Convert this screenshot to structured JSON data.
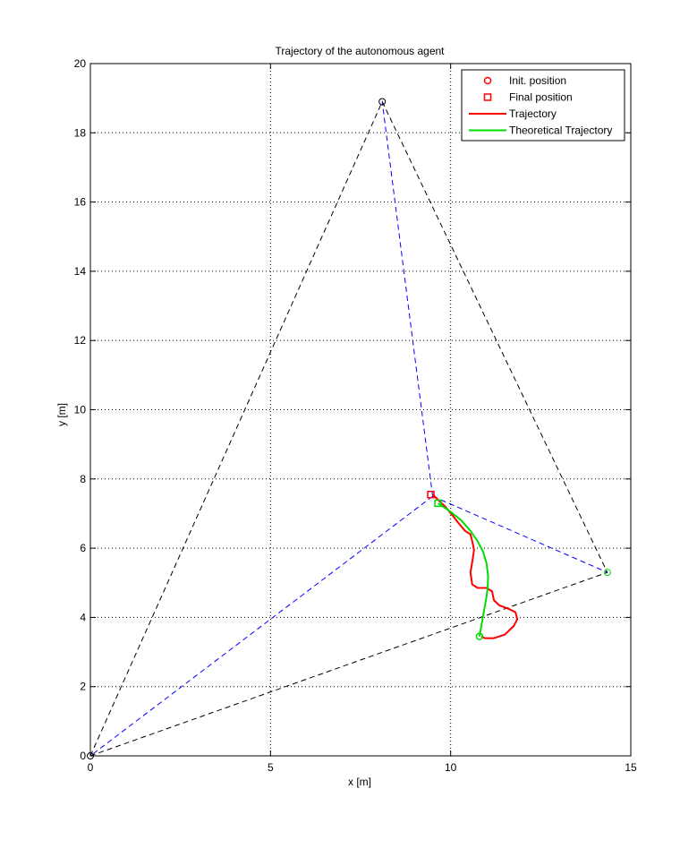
{
  "chart_data": {
    "type": "line",
    "title": "Trajectory of the autonomous agent",
    "xlabel": "x [m]",
    "ylabel": "y [m]",
    "xlim": [
      0,
      15
    ],
    "ylim": [
      0,
      20
    ],
    "xticks": [
      0,
      5,
      10,
      15
    ],
    "yticks": [
      0,
      2,
      4,
      6,
      8,
      10,
      12,
      14,
      16,
      18,
      20
    ],
    "grid": true,
    "legend_position": "top-right",
    "legend": [
      {
        "label": "Init. position",
        "marker": "circle",
        "color": "#ff0000"
      },
      {
        "label": "Final position",
        "marker": "square",
        "color": "#ff0000"
      },
      {
        "label": "Trajectory",
        "line": "solid",
        "color": "#ff0000"
      },
      {
        "label": "Theoretical Trajectory",
        "line": "solid",
        "color": "#00dd00"
      }
    ],
    "anchors": [
      {
        "name": "anchor-origin",
        "x": 0,
        "y": 0,
        "color": "#000000"
      },
      {
        "name": "anchor-top",
        "x": 8.1,
        "y": 18.9,
        "color": "#000000"
      },
      {
        "name": "anchor-right",
        "x": 14.35,
        "y": 5.3,
        "color": "#00dd00"
      }
    ],
    "anchor_triangle": {
      "color": "#000000",
      "points": [
        [
          0,
          0
        ],
        [
          8.1,
          18.9
        ],
        [
          14.35,
          5.3
        ],
        [
          0,
          0
        ]
      ]
    },
    "range_lines": {
      "color": "#0000ff",
      "from": [
        9.5,
        7.5
      ],
      "to": [
        [
          0,
          0
        ],
        [
          8.1,
          18.9
        ],
        [
          14.35,
          5.3
        ]
      ]
    },
    "series": [
      {
        "name": "Trajectory",
        "color": "#ff0000",
        "x": [
          10.85,
          10.95,
          11.2,
          11.5,
          11.75,
          11.85,
          11.8,
          11.6,
          11.35,
          11.2,
          11.15,
          11.0,
          10.75,
          10.6,
          10.55,
          10.6,
          10.65,
          10.6,
          10.55,
          10.4,
          10.2,
          10.05,
          9.85,
          9.65,
          9.5
        ],
        "y": [
          3.45,
          3.4,
          3.4,
          3.5,
          3.75,
          3.95,
          4.15,
          4.25,
          4.35,
          4.5,
          4.75,
          4.85,
          4.85,
          4.95,
          5.3,
          5.6,
          5.95,
          6.2,
          6.4,
          6.5,
          6.75,
          6.95,
          7.2,
          7.4,
          7.55
        ]
      },
      {
        "name": "Theoretical Trajectory",
        "color": "#00dd00",
        "x": [
          10.8,
          10.86,
          10.92,
          10.98,
          11.03,
          11.04,
          11.0,
          10.9,
          10.75,
          10.55,
          10.3,
          10.0,
          9.65
        ],
        "y": [
          3.45,
          3.8,
          4.15,
          4.5,
          4.85,
          5.2,
          5.55,
          5.9,
          6.2,
          6.5,
          6.8,
          7.05,
          7.3
        ]
      }
    ],
    "markers": [
      {
        "name": "init-position-marker",
        "shape": "circle",
        "x": 10.8,
        "y": 3.45,
        "color": "#00dd00"
      },
      {
        "name": "final-position-marker-theoretical",
        "shape": "square",
        "x": 9.65,
        "y": 7.3,
        "color": "#00dd00"
      },
      {
        "name": "final-position-marker",
        "shape": "square",
        "x": 9.45,
        "y": 7.55,
        "color": "#ff0000"
      }
    ]
  }
}
